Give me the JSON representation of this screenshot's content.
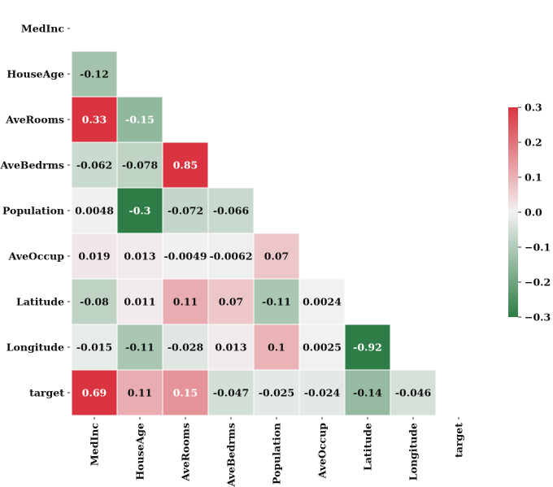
{
  "chart_data": {
    "type": "heatmap",
    "variables": [
      "MedInc",
      "HouseAge",
      "AveRooms",
      "AveBedrms",
      "Population",
      "AveOccup",
      "Latitude",
      "Longitude",
      "target"
    ],
    "cells": [
      {
        "row": "HouseAge",
        "col": "MedInc",
        "value": -0.12,
        "label": "-0.12"
      },
      {
        "row": "AveRooms",
        "col": "MedInc",
        "value": 0.33,
        "label": "0.33"
      },
      {
        "row": "AveRooms",
        "col": "HouseAge",
        "value": -0.15,
        "label": "-0.15"
      },
      {
        "row": "AveBedrms",
        "col": "MedInc",
        "value": -0.062,
        "label": "-0.062"
      },
      {
        "row": "AveBedrms",
        "col": "HouseAge",
        "value": -0.078,
        "label": "-0.078"
      },
      {
        "row": "AveBedrms",
        "col": "AveRooms",
        "value": 0.85,
        "label": "0.85"
      },
      {
        "row": "Population",
        "col": "MedInc",
        "value": 0.0048,
        "label": "0.0048"
      },
      {
        "row": "Population",
        "col": "HouseAge",
        "value": -0.3,
        "label": "-0.3"
      },
      {
        "row": "Population",
        "col": "AveRooms",
        "value": -0.072,
        "label": "-0.072"
      },
      {
        "row": "Population",
        "col": "AveBedrms",
        "value": -0.066,
        "label": "-0.066"
      },
      {
        "row": "AveOccup",
        "col": "MedInc",
        "value": 0.019,
        "label": "0.019"
      },
      {
        "row": "AveOccup",
        "col": "HouseAge",
        "value": 0.013,
        "label": "0.013"
      },
      {
        "row": "AveOccup",
        "col": "AveRooms",
        "value": -0.0049,
        "label": "-0.0049"
      },
      {
        "row": "AveOccup",
        "col": "AveBedrms",
        "value": -0.0062,
        "label": "-0.0062"
      },
      {
        "row": "AveOccup",
        "col": "Population",
        "value": 0.07,
        "label": "0.07"
      },
      {
        "row": "Latitude",
        "col": "MedInc",
        "value": -0.08,
        "label": "-0.08"
      },
      {
        "row": "Latitude",
        "col": "HouseAge",
        "value": 0.011,
        "label": "0.011"
      },
      {
        "row": "Latitude",
        "col": "AveRooms",
        "value": 0.11,
        "label": "0.11"
      },
      {
        "row": "Latitude",
        "col": "AveBedrms",
        "value": 0.07,
        "label": "0.07"
      },
      {
        "row": "Latitude",
        "col": "Population",
        "value": -0.11,
        "label": "-0.11"
      },
      {
        "row": "Latitude",
        "col": "AveOccup",
        "value": 0.0024,
        "label": "0.0024"
      },
      {
        "row": "Longitude",
        "col": "MedInc",
        "value": -0.015,
        "label": "-0.015"
      },
      {
        "row": "Longitude",
        "col": "HouseAge",
        "value": -0.11,
        "label": "-0.11"
      },
      {
        "row": "Longitude",
        "col": "AveRooms",
        "value": -0.028,
        "label": "-0.028"
      },
      {
        "row": "Longitude",
        "col": "AveBedrms",
        "value": 0.013,
        "label": "0.013"
      },
      {
        "row": "Longitude",
        "col": "Population",
        "value": 0.1,
        "label": "0.1"
      },
      {
        "row": "Longitude",
        "col": "AveOccup",
        "value": 0.0025,
        "label": "0.0025"
      },
      {
        "row": "Longitude",
        "col": "Latitude",
        "value": -0.92,
        "label": "-0.92"
      },
      {
        "row": "target",
        "col": "MedInc",
        "value": 0.69,
        "label": "0.69"
      },
      {
        "row": "target",
        "col": "HouseAge",
        "value": 0.11,
        "label": "0.11"
      },
      {
        "row": "target",
        "col": "AveRooms",
        "value": 0.15,
        "label": "0.15"
      },
      {
        "row": "target",
        "col": "AveBedrms",
        "value": -0.047,
        "label": "-0.047"
      },
      {
        "row": "target",
        "col": "Population",
        "value": -0.025,
        "label": "-0.025"
      },
      {
        "row": "target",
        "col": "AveOccup",
        "value": -0.024,
        "label": "-0.024"
      },
      {
        "row": "target",
        "col": "Latitude",
        "value": -0.14,
        "label": "-0.14"
      },
      {
        "row": "target",
        "col": "Longitude",
        "value": -0.046,
        "label": "-0.046"
      }
    ],
    "mask": "upper-triangle-including-diagonal",
    "colorbar": {
      "vmin": -0.3,
      "vmax": 0.3,
      "ticks": [
        -0.3,
        -0.2,
        -0.1,
        0.0,
        0.1,
        0.2,
        0.3
      ],
      "tick_labels": [
        "−0.3",
        "−0.2",
        "−0.1",
        "0.0",
        "0.1",
        "0.2",
        "0.3"
      ],
      "low_color": "#2e7d46",
      "mid_color": "#f2f2f2",
      "high_color": "#d9343f",
      "placement": "right"
    },
    "title": "",
    "xlabel": "",
    "ylabel": ""
  }
}
